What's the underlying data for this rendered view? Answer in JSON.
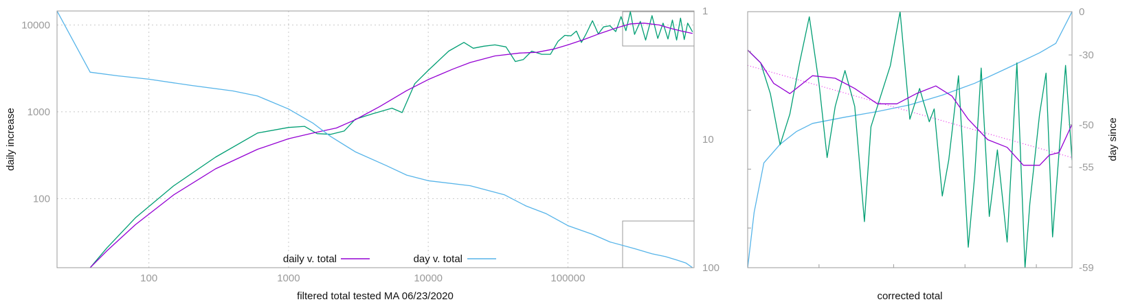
{
  "colors": {
    "daily_v_total": "#9400d3",
    "day_v_total": "#56b4e9",
    "raw_daily": "#009e73",
    "trend_dotted": "#e51ee5",
    "frame": "#9a9a9a",
    "grid": "#c8c8c8"
  },
  "chart_data": [
    {
      "type": "line",
      "xlabel": "filtered total tested MA 06/23/2020",
      "ylabel": "daily increase",
      "y2label": "",
      "x_scale": "log",
      "y_scale": "log",
      "y2_scale": "log, reversed",
      "xlim": [
        22,
        800000
      ],
      "ylim": [
        16,
        14500
      ],
      "y2lim": [
        1,
        100
      ],
      "grid": true,
      "legend_position": "bottom-center",
      "x_ticks": [
        "100",
        "1000",
        "10000",
        "100000"
      ],
      "y_ticks": [
        "100",
        "1000",
        "10000"
      ],
      "y2_ticks": [
        "1",
        "10",
        "100"
      ],
      "series": [
        {
          "name": "daily v. total",
          "axis": "left",
          "x": [
            38,
            50,
            80,
            150,
            300,
            600,
            1000,
            1500,
            2200,
            3000,
            4500,
            7000,
            10000,
            15000,
            20000,
            30000,
            45000,
            60000,
            80000,
            100000,
            130000,
            170000,
            220000,
            280000,
            350000,
            450000,
            550000,
            650000,
            780000
          ],
          "y": [
            16,
            25,
            50,
            110,
            220,
            370,
            490,
            570,
            650,
            810,
            1150,
            1750,
            2350,
            3100,
            3700,
            4400,
            4750,
            4850,
            5300,
            5900,
            6800,
            8000,
            9200,
            10300,
            10500,
            10000,
            9100,
            8500,
            8000
          ]
        },
        {
          "axis": "left",
          "x": [
            38,
            50,
            80,
            150,
            300,
            600,
            1000,
            1300,
            1600,
            2000,
            2500,
            3000,
            4000,
            5500,
            6500,
            8000,
            10000,
            14000,
            18000,
            21000,
            25000,
            30000,
            36000,
            42000,
            48000,
            55000,
            65000,
            75000,
            85000,
            95000,
            105000,
            115000,
            125000,
            135000,
            150000,
            165000,
            180000,
            200000,
            220000,
            240000,
            260000,
            280000,
            300000,
            330000,
            360000,
            400000,
            440000,
            480000,
            520000,
            560000,
            600000,
            640000,
            680000,
            720000,
            780000
          ],
          "y": [
            16,
            27,
            60,
            140,
            300,
            570,
            660,
            680,
            560,
            550,
            600,
            820,
            950,
            1100,
            980,
            2100,
            3000,
            5000,
            6300,
            5400,
            5700,
            5900,
            5600,
            3800,
            4000,
            5000,
            4600,
            4600,
            6500,
            7600,
            7500,
            8500,
            6300,
            7900,
            11200,
            7900,
            9500,
            9800,
            8400,
            12500,
            8600,
            14200,
            7800,
            11000,
            6700,
            12800,
            7000,
            10500,
            6900,
            11400,
            6700,
            12000,
            6800,
            10500,
            8300
          ]
        },
        {
          "name": "day v. total",
          "axis": "right",
          "x": [
            22,
            38,
            60,
            100,
            200,
            400,
            600,
            1000,
            1500,
            2000,
            3000,
            5000,
            7000,
            10000,
            20000,
            35000,
            50000,
            70000,
            100000,
            150000,
            200000,
            300000,
            400000,
            500000,
            600000,
            700000,
            780000
          ],
          "y": [
            1,
            3,
            3.2,
            3.4,
            3.8,
            4.2,
            4.6,
            5.8,
            7.5,
            9.5,
            12.5,
            16,
            19,
            21,
            23,
            27,
            33,
            38,
            47,
            55,
            63,
            71,
            78,
            82,
            87,
            92,
            100
          ]
        }
      ]
    },
    {
      "type": "line",
      "xlabel": "corrected total",
      "ylabel": "",
      "y2label": "day since",
      "xlim": [
        0,
        1
      ],
      "y2lim": [
        -59,
        0
      ],
      "y2_ticks": [
        "0",
        "-30",
        "-50",
        "-55",
        "-59"
      ],
      "series": [
        {
          "axis": "left",
          "x": [
            0,
            0.04,
            0.08,
            0.13,
            0.2,
            0.27,
            0.33,
            0.4,
            0.46,
            0.52,
            0.58,
            0.63,
            0.68,
            0.74,
            0.8,
            0.85,
            0.9,
            0.93,
            0.96,
            1.0
          ],
          "y": [
            0.85,
            0.8,
            0.72,
            0.68,
            0.75,
            0.74,
            0.7,
            0.64,
            0.64,
            0.68,
            0.71,
            0.67,
            0.58,
            0.5,
            0.47,
            0.4,
            0.4,
            0.44,
            0.45,
            0.56
          ]
        },
        {
          "axis": "left",
          "x": [
            0,
            0.04,
            0.07,
            0.1,
            0.13,
            0.16,
            0.19,
            0.22,
            0.245,
            0.27,
            0.3,
            0.33,
            0.36,
            0.38,
            0.41,
            0.44,
            0.47,
            0.5,
            0.53,
            0.56,
            0.575,
            0.6,
            0.62,
            0.65,
            0.68,
            0.7,
            0.72,
            0.745,
            0.77,
            0.8,
            0.83,
            0.855,
            0.87,
            0.9,
            0.92,
            0.94,
            0.96,
            0.98,
            1.0
          ],
          "y": [
            0.85,
            0.8,
            0.68,
            0.48,
            0.6,
            0.8,
            0.98,
            0.72,
            0.43,
            0.63,
            0.77,
            0.63,
            0.18,
            0.55,
            0.67,
            0.79,
            1.0,
            0.58,
            0.7,
            0.57,
            0.62,
            0.28,
            0.42,
            0.75,
            0.08,
            0.36,
            0.78,
            0.2,
            0.46,
            0.1,
            0.8,
            0.0,
            0.25,
            0.6,
            0.76,
            0.12,
            0.45,
            0.79,
            0.42
          ]
        },
        {
          "axis": "left",
          "x": [
            0,
            1
          ],
          "y": [
            0.79,
            0.43
          ]
        },
        {
          "axis": "right",
          "x": [
            0,
            0.02,
            0.05,
            0.1,
            0.15,
            0.2,
            0.3,
            0.4,
            0.5,
            0.6,
            0.7,
            0.8,
            0.9,
            0.95,
            1.0
          ],
          "y": [
            -59,
            -56.8,
            -54.5,
            -52.3,
            -50.8,
            -49.6,
            -47.8,
            -46.2,
            -44.3,
            -41.5,
            -38.1,
            -33.8,
            -28.5,
            -22,
            0
          ]
        }
      ]
    }
  ],
  "legend": [
    {
      "label": "daily v. total",
      "color": "#9400d3"
    },
    {
      "label": "day v. total",
      "color": "#56b4e9"
    }
  ]
}
